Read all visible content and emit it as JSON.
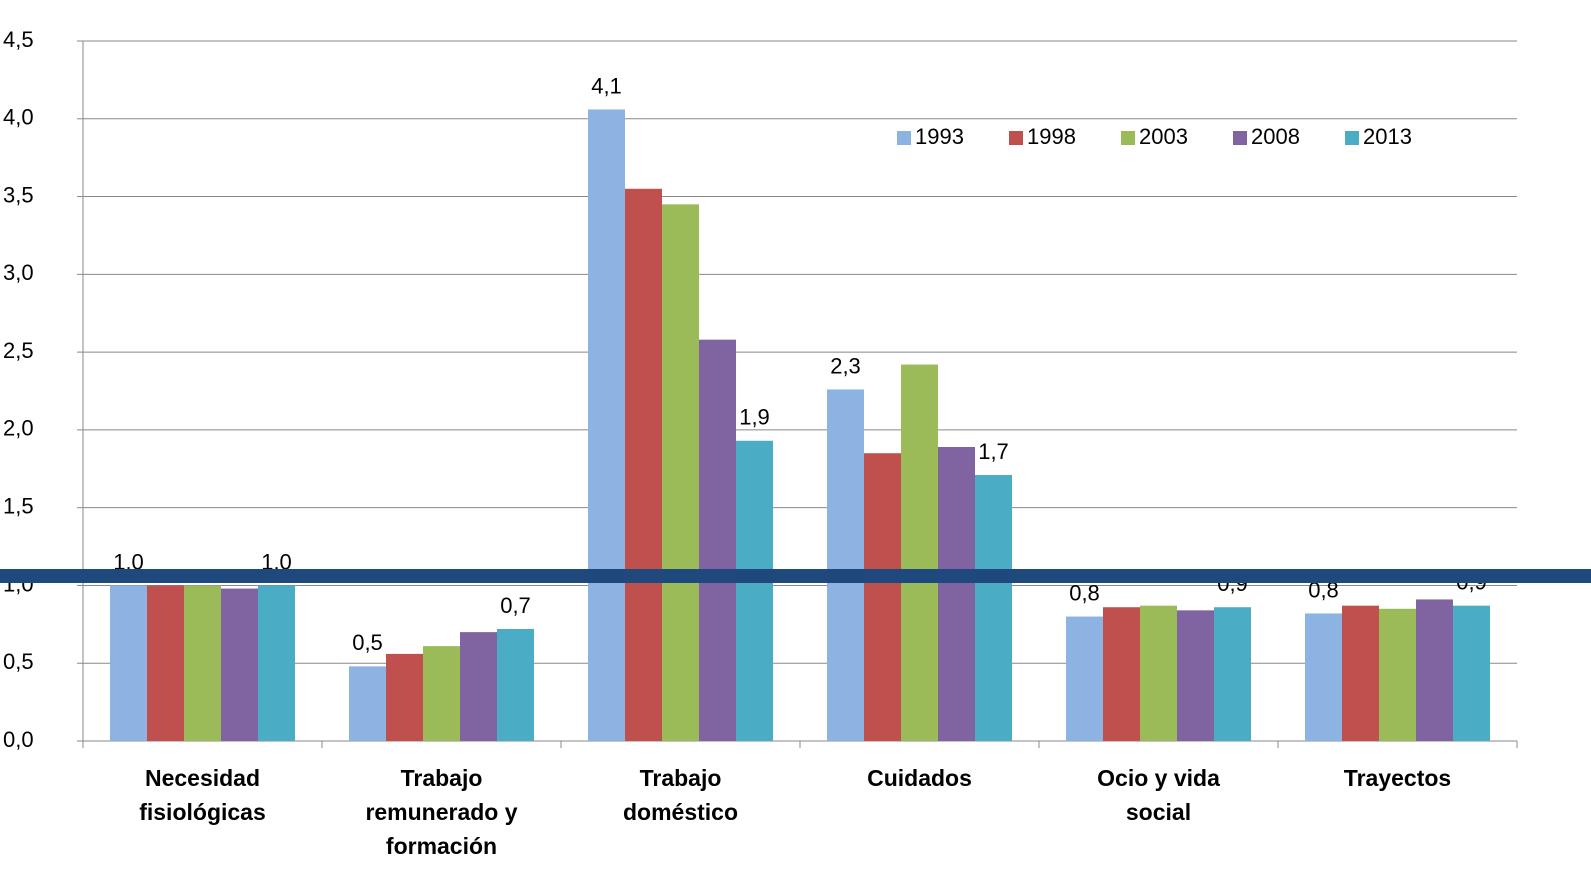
{
  "chart_data": {
    "type": "bar",
    "categories": [
      "Necesidad fisiológicas",
      "Trabajo remunerado y formación",
      "Trabajo doméstico",
      "Cuidados",
      "Ocio y vida social",
      "Trayectos"
    ],
    "series": [
      {
        "name": "1993",
        "color": "#8db3e2",
        "values": [
          1.0,
          0.48,
          4.06,
          2.26,
          0.8,
          0.82
        ],
        "value_labels": [
          "1,0",
          "0,5",
          "4,1",
          "2,3",
          "0,8",
          "0,8"
        ]
      },
      {
        "name": "1998",
        "color": "#c0504d",
        "values": [
          1.0,
          0.56,
          3.55,
          1.85,
          0.86,
          0.87
        ],
        "value_labels": [
          null,
          null,
          null,
          null,
          null,
          null
        ]
      },
      {
        "name": "2003",
        "color": "#9bbb59",
        "values": [
          1.0,
          0.61,
          3.45,
          2.42,
          0.87,
          0.85
        ],
        "value_labels": [
          null,
          null,
          null,
          null,
          null,
          null
        ]
      },
      {
        "name": "2008",
        "color": "#8064a2",
        "values": [
          0.98,
          0.7,
          2.58,
          1.89,
          0.84,
          0.91
        ],
        "value_labels": [
          null,
          null,
          null,
          null,
          null,
          null
        ]
      },
      {
        "name": "2013",
        "color": "#4bacc6",
        "values": [
          1.0,
          0.72,
          1.93,
          1.71,
          0.86,
          0.87
        ],
        "value_labels": [
          "1,0",
          "0,7",
          "1,9",
          "1,7",
          "0,9",
          "0,9"
        ]
      }
    ],
    "ylim": [
      0,
      4.5
    ],
    "yticks": [
      {
        "value": 0,
        "label": "0,0"
      },
      {
        "value": 0.5,
        "label": "0,5"
      },
      {
        "value": 1,
        "label": "1,0"
      },
      {
        "value": 1.5,
        "label": "1,5"
      },
      {
        "value": 2,
        "label": "2,0"
      },
      {
        "value": 2.5,
        "label": "2,5"
      },
      {
        "value": 3,
        "label": "3,0"
      },
      {
        "value": 3.5,
        "label": "3,5"
      },
      {
        "value": 4,
        "label": "4,0"
      },
      {
        "value": 4.5,
        "label": "4,5"
      }
    ],
    "grid": true,
    "legend": "top-right"
  }
}
